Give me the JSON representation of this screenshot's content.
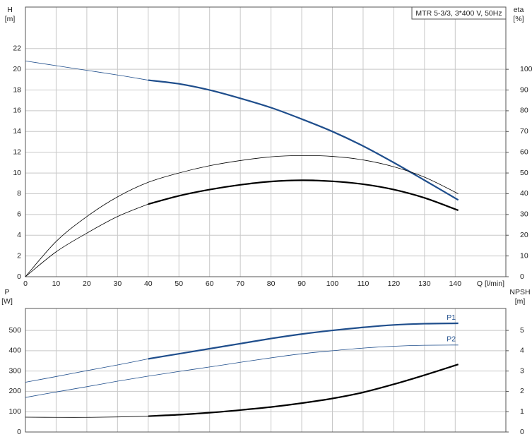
{
  "chart_data": [
    {
      "type": "line",
      "title": "MTR 5-3/3, 3*400 V, 50Hz",
      "y_label": "H",
      "y_unit": "[m]",
      "y2_label": "eta",
      "y2_unit": "[%]",
      "x_label": "Q [l/min]",
      "xlim": [
        0,
        156.5
      ],
      "xticks": [
        0,
        10,
        20,
        30,
        40,
        50,
        60,
        70,
        80,
        90,
        100,
        110,
        120,
        130,
        140
      ],
      "ylim": [
        0,
        26
      ],
      "yticks": [
        0,
        2,
        4,
        6,
        8,
        10,
        12,
        14,
        16,
        18,
        20,
        22
      ],
      "y2lim": [
        0,
        130
      ],
      "y2ticks": [
        0,
        10,
        20,
        30,
        40,
        50,
        60,
        70,
        80,
        90,
        100
      ],
      "grid": true,
      "series": [
        {
          "color": "#1f4e8c",
          "width": 0.8,
          "x": [
            0,
            10,
            20,
            30,
            40
          ],
          "values": [
            20.8,
            20.35,
            19.9,
            19.45,
            18.95
          ]
        },
        {
          "color": "#1f4e8c",
          "width": 2.2,
          "x": [
            40,
            50,
            60,
            70,
            80,
            90,
            100,
            110,
            120,
            130,
            141
          ],
          "values": [
            18.95,
            18.6,
            18.0,
            17.2,
            16.3,
            15.2,
            14.0,
            12.6,
            11.0,
            9.3,
            7.4
          ]
        },
        {
          "color": "#000000",
          "width": 0.8,
          "axis": "y2",
          "x": [
            0,
            10,
            20,
            30,
            40,
            50,
            60,
            70,
            80,
            90,
            100,
            110,
            120,
            130,
            141
          ],
          "values": [
            0,
            17,
            29,
            38.5,
            45.5,
            50,
            53.5,
            56,
            57.8,
            58.4,
            58,
            56.3,
            53,
            48,
            40
          ]
        },
        {
          "color": "#000000",
          "width": 0.8,
          "axis": "y2",
          "x": [
            0,
            10,
            20,
            30,
            40
          ],
          "values": [
            0,
            12,
            21,
            29,
            35
          ]
        },
        {
          "color": "#000000",
          "width": 2.2,
          "axis": "y2",
          "x": [
            40,
            50,
            60,
            70,
            80,
            90,
            100,
            110,
            120,
            130,
            141
          ],
          "values": [
            35,
            39,
            42,
            44.3,
            45.9,
            46.5,
            46,
            44.6,
            42,
            38,
            32
          ]
        }
      ]
    },
    {
      "type": "line",
      "y_label": "P",
      "y_unit": "[W]",
      "y2_label": "NPSH",
      "y2_unit": "[m]",
      "xlim": [
        0,
        156.5
      ],
      "xticks": [
        0,
        10,
        20,
        30,
        40,
        50,
        60,
        70,
        80,
        90,
        100,
        110,
        120,
        130,
        140
      ],
      "ylim": [
        0,
        608
      ],
      "yticks": [
        0,
        100,
        200,
        300,
        400,
        500
      ],
      "y2lim": [
        0,
        6.08
      ],
      "y2ticks": [
        0,
        1,
        2,
        3,
        4,
        5
      ],
      "grid": true,
      "series": [
        {
          "color": "#1f4e8c",
          "width": 0.8,
          "x": [
            0,
            10,
            20,
            30,
            40
          ],
          "values": [
            245,
            273,
            302,
            330,
            360
          ]
        },
        {
          "name": "P1",
          "color": "#1f4e8c",
          "width": 2.2,
          "x": [
            40,
            50,
            60,
            70,
            80,
            90,
            100,
            110,
            120,
            130,
            141
          ],
          "values": [
            360,
            385,
            410,
            435,
            460,
            482,
            500,
            515,
            527,
            533,
            535
          ]
        },
        {
          "name": "P2",
          "color": "#1f4e8c",
          "width": 0.8,
          "x": [
            0,
            10,
            20,
            30,
            40,
            50,
            60,
            70,
            80,
            90,
            100,
            110,
            120,
            130,
            141
          ],
          "values": [
            170,
            197,
            223,
            250,
            275,
            298,
            320,
            343,
            365,
            385,
            400,
            413,
            422,
            427,
            428
          ]
        },
        {
          "color": "#000000",
          "width": 0.8,
          "axis": "y2",
          "x": [
            0,
            10,
            20,
            30,
            40
          ],
          "values": [
            0.73,
            0.72,
            0.72,
            0.74,
            0.78
          ]
        },
        {
          "color": "#000000",
          "width": 2.2,
          "axis": "y2",
          "x": [
            40,
            50,
            60,
            70,
            80,
            90,
            100,
            110,
            120,
            130,
            141
          ],
          "values": [
            0.78,
            0.85,
            0.95,
            1.08,
            1.23,
            1.42,
            1.65,
            1.95,
            2.35,
            2.8,
            3.33
          ]
        }
      ]
    }
  ]
}
